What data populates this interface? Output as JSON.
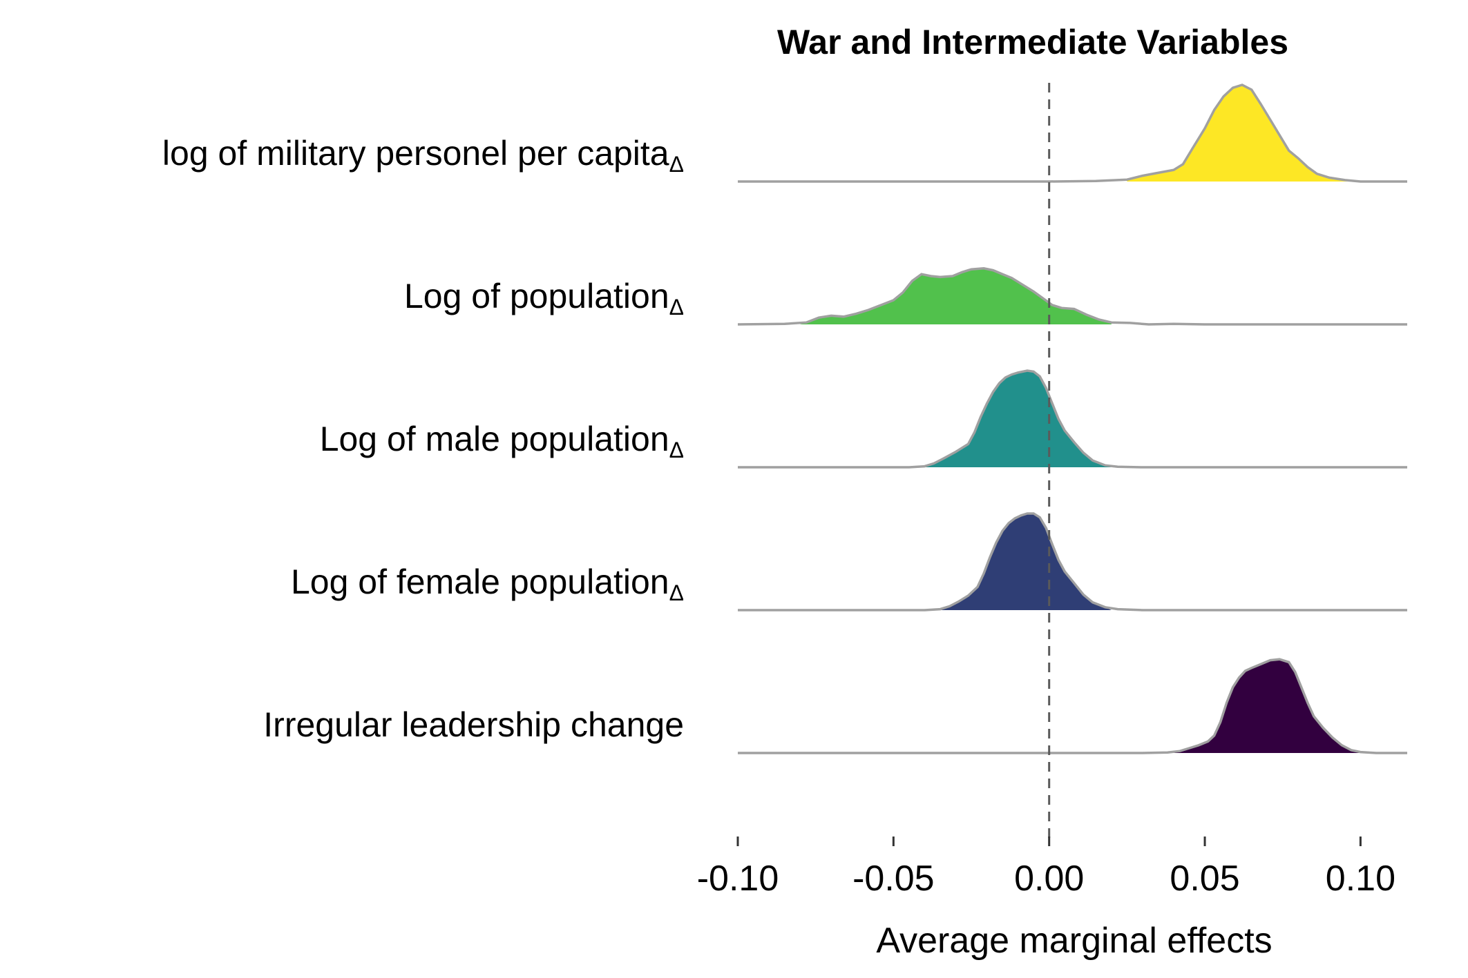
{
  "chart_data": {
    "type": "ridgeline",
    "title": "War and Intermediate Variables",
    "xlabel": "Average marginal effects",
    "ylabel": "",
    "xlim": [
      -0.1,
      0.115
    ],
    "x_ticks": [
      -0.1,
      -0.05,
      0.0,
      0.05,
      0.1
    ],
    "x_tick_labels": [
      "-0.10",
      "-0.05",
      "0.00",
      "0.05",
      "0.10"
    ],
    "reference_line": {
      "x": 0.0,
      "style": "dashed"
    },
    "grid": false,
    "legend": "none",
    "outline_color": "#a0a0a0",
    "series": [
      {
        "label": "log of military personel  per capita",
        "subscript": "Δ",
        "color": "#fde725",
        "range": [
          0.025,
          0.1
        ],
        "density": [
          [
            -0.1,
            0.0
          ],
          [
            0.0,
            0.0
          ],
          [
            0.015,
            0.005
          ],
          [
            0.025,
            0.02
          ],
          [
            0.03,
            0.06
          ],
          [
            0.035,
            0.09
          ],
          [
            0.04,
            0.12
          ],
          [
            0.043,
            0.18
          ],
          [
            0.046,
            0.34
          ],
          [
            0.05,
            0.55
          ],
          [
            0.053,
            0.74
          ],
          [
            0.056,
            0.88
          ],
          [
            0.059,
            0.97
          ],
          [
            0.062,
            1.0
          ],
          [
            0.065,
            0.95
          ],
          [
            0.068,
            0.8
          ],
          [
            0.071,
            0.64
          ],
          [
            0.074,
            0.48
          ],
          [
            0.077,
            0.32
          ],
          [
            0.08,
            0.24
          ],
          [
            0.083,
            0.15
          ],
          [
            0.086,
            0.08
          ],
          [
            0.09,
            0.04
          ],
          [
            0.095,
            0.015
          ],
          [
            0.1,
            0.0
          ],
          [
            0.115,
            0.0
          ]
        ]
      },
      {
        "label": "Log of population",
        "subscript": "Δ",
        "color": "#51c14c",
        "range": [
          -0.08,
          0.02
        ],
        "density": [
          [
            -0.1,
            0.0
          ],
          [
            -0.085,
            0.005
          ],
          [
            -0.078,
            0.02
          ],
          [
            -0.074,
            0.07
          ],
          [
            -0.07,
            0.09
          ],
          [
            -0.066,
            0.08
          ],
          [
            -0.062,
            0.11
          ],
          [
            -0.058,
            0.15
          ],
          [
            -0.054,
            0.2
          ],
          [
            -0.05,
            0.25
          ],
          [
            -0.047,
            0.33
          ],
          [
            -0.044,
            0.45
          ],
          [
            -0.041,
            0.52
          ],
          [
            -0.038,
            0.5
          ],
          [
            -0.035,
            0.49
          ],
          [
            -0.031,
            0.5
          ],
          [
            -0.028,
            0.54
          ],
          [
            -0.025,
            0.57
          ],
          [
            -0.021,
            0.58
          ],
          [
            -0.018,
            0.56
          ],
          [
            -0.015,
            0.52
          ],
          [
            -0.012,
            0.48
          ],
          [
            -0.009,
            0.42
          ],
          [
            -0.005,
            0.34
          ],
          [
            -0.002,
            0.27
          ],
          [
            0.001,
            0.2
          ],
          [
            0.004,
            0.17
          ],
          [
            0.008,
            0.16
          ],
          [
            0.012,
            0.1
          ],
          [
            0.016,
            0.05
          ],
          [
            0.02,
            0.02
          ],
          [
            0.026,
            0.015
          ],
          [
            0.032,
            0.0
          ],
          [
            0.04,
            0.005
          ],
          [
            0.05,
            0.0
          ],
          [
            0.115,
            0.0
          ]
        ]
      },
      {
        "label": "Log of male population",
        "subscript": "Δ",
        "color": "#21908c",
        "range": [
          -0.04,
          0.02
        ],
        "density": [
          [
            -0.1,
            0.0
          ],
          [
            -0.045,
            0.0
          ],
          [
            -0.04,
            0.01
          ],
          [
            -0.037,
            0.04
          ],
          [
            -0.034,
            0.09
          ],
          [
            -0.03,
            0.16
          ],
          [
            -0.026,
            0.24
          ],
          [
            -0.024,
            0.36
          ],
          [
            -0.022,
            0.52
          ],
          [
            -0.02,
            0.66
          ],
          [
            -0.018,
            0.78
          ],
          [
            -0.016,
            0.87
          ],
          [
            -0.014,
            0.93
          ],
          [
            -0.012,
            0.96
          ],
          [
            -0.01,
            0.98
          ],
          [
            -0.007,
            1.0
          ],
          [
            -0.005,
            0.99
          ],
          [
            -0.003,
            0.94
          ],
          [
            -0.001,
            0.82
          ],
          [
            0.001,
            0.66
          ],
          [
            0.003,
            0.5
          ],
          [
            0.005,
            0.38
          ],
          [
            0.008,
            0.26
          ],
          [
            0.011,
            0.15
          ],
          [
            0.014,
            0.07
          ],
          [
            0.018,
            0.02
          ],
          [
            0.022,
            0.005
          ],
          [
            0.03,
            0.0
          ],
          [
            0.115,
            0.0
          ]
        ]
      },
      {
        "label": "Log of female population",
        "subscript": "Δ",
        "color": "#2f3e75",
        "range": [
          -0.035,
          0.02
        ],
        "density": [
          [
            -0.1,
            0.0
          ],
          [
            -0.04,
            0.0
          ],
          [
            -0.035,
            0.01
          ],
          [
            -0.032,
            0.04
          ],
          [
            -0.029,
            0.09
          ],
          [
            -0.026,
            0.15
          ],
          [
            -0.023,
            0.24
          ],
          [
            -0.021,
            0.38
          ],
          [
            -0.019,
            0.55
          ],
          [
            -0.017,
            0.7
          ],
          [
            -0.015,
            0.82
          ],
          [
            -0.013,
            0.9
          ],
          [
            -0.011,
            0.95
          ],
          [
            -0.009,
            0.98
          ],
          [
            -0.007,
            1.0
          ],
          [
            -0.005,
            1.0
          ],
          [
            -0.003,
            0.96
          ],
          [
            -0.001,
            0.85
          ],
          [
            0.001,
            0.68
          ],
          [
            0.003,
            0.52
          ],
          [
            0.005,
            0.4
          ],
          [
            0.008,
            0.28
          ],
          [
            0.011,
            0.16
          ],
          [
            0.014,
            0.08
          ],
          [
            0.018,
            0.03
          ],
          [
            0.022,
            0.01
          ],
          [
            0.03,
            0.0
          ],
          [
            0.115,
            0.0
          ]
        ]
      },
      {
        "label": "Irregular leadership change",
        "subscript": "",
        "color": "#32003f",
        "range": [
          0.04,
          0.1
        ],
        "density": [
          [
            -0.1,
            0.0
          ],
          [
            0.03,
            0.0
          ],
          [
            0.038,
            0.005
          ],
          [
            0.042,
            0.02
          ],
          [
            0.045,
            0.05
          ],
          [
            0.048,
            0.08
          ],
          [
            0.051,
            0.12
          ],
          [
            0.053,
            0.18
          ],
          [
            0.055,
            0.32
          ],
          [
            0.057,
            0.52
          ],
          [
            0.059,
            0.68
          ],
          [
            0.061,
            0.78
          ],
          [
            0.063,
            0.85
          ],
          [
            0.065,
            0.88
          ],
          [
            0.068,
            0.92
          ],
          [
            0.071,
            0.96
          ],
          [
            0.074,
            0.97
          ],
          [
            0.077,
            0.94
          ],
          [
            0.079,
            0.84
          ],
          [
            0.081,
            0.68
          ],
          [
            0.083,
            0.52
          ],
          [
            0.085,
            0.38
          ],
          [
            0.088,
            0.26
          ],
          [
            0.091,
            0.16
          ],
          [
            0.094,
            0.08
          ],
          [
            0.097,
            0.03
          ],
          [
            0.1,
            0.01
          ],
          [
            0.105,
            0.0
          ],
          [
            0.115,
            0.0
          ]
        ]
      }
    ]
  }
}
